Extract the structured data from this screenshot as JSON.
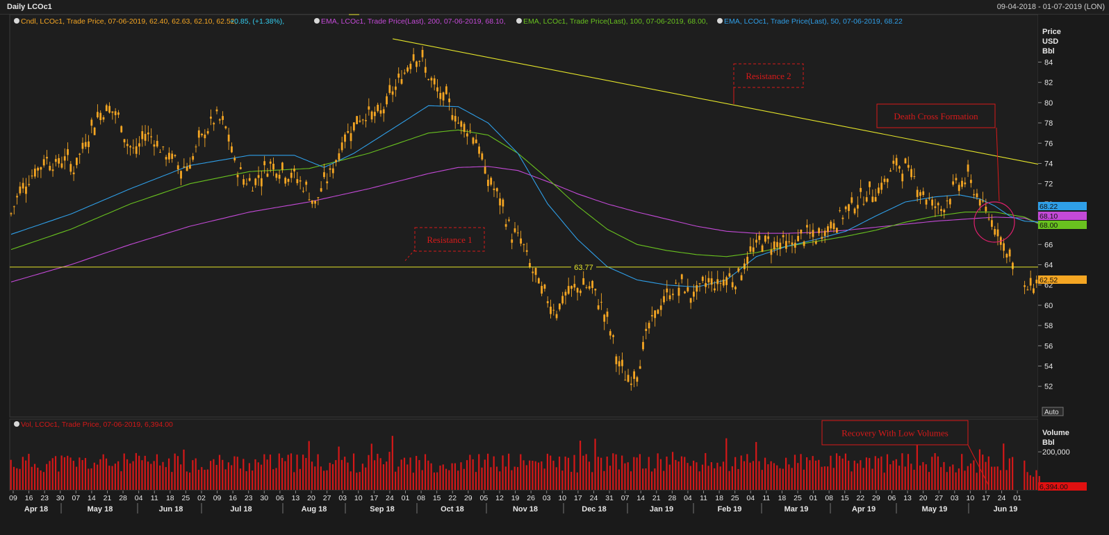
{
  "window": {
    "title": "Daily LCOc1",
    "date_range": "09-04-2018 - 01-07-2019 (LON)"
  },
  "legend_price": {
    "cndl": "Cndl, LCOc1, Trade Price, 07-06-2019, 62.40, 62.63, 62.10, 62.52,",
    "cndl_change": "+0.85, (+1.38%),",
    "ema200": "EMA, LCOc1, Trade Price(Last), 200, 07-06-2019, 68.10,",
    "ema100": "EMA, LCOc1, Trade Price(Last), 100, 07-06-2019, 68.00,",
    "ema50": "EMA, LCOc1, Trade Price(Last), 50, 07-06-2019, 68.22"
  },
  "legend_volume": "Vol, LCOc1, Trade Price, 07-06-2019, 6,394.00",
  "axis_price_label": [
    "Price",
    "USD",
    "Bbl"
  ],
  "axis_volume_label": [
    "Volume",
    "Bbl"
  ],
  "auto_button": "Auto",
  "annotations": {
    "resistance1": "Resistance 1",
    "resistance2": "Resistance 2",
    "death_cross": "Death Cross Formation",
    "recovery": "Recovery With Low Volumes",
    "level_label": "63.77"
  },
  "colors": {
    "background": "#1a1a1a",
    "candle": "#f5a623",
    "ema50": "#2f9fe8",
    "ema100": "#69c21f",
    "ema200": "#c44ad8",
    "trendline": "#e6e62a",
    "volume": "#d41818",
    "annotation": "#d81a1a",
    "circle": "#e0206e"
  },
  "chart_data": [
    {
      "type": "candlestick",
      "title": "Daily LCOc1",
      "ylabel": "Price USD Bbl",
      "ylim": [
        49.5,
        86
      ],
      "yticks": [
        52,
        54,
        56,
        58,
        60,
        62,
        64,
        66,
        68,
        70,
        72,
        74,
        76,
        78,
        80,
        82,
        84
      ],
      "x_tick_labels": [
        "09",
        "16",
        "23",
        "30",
        "07",
        "14",
        "21",
        "28",
        "04",
        "11",
        "18",
        "25",
        "02",
        "09",
        "16",
        "23",
        "30",
        "06",
        "13",
        "20",
        "27",
        "03",
        "10",
        "17",
        "24",
        "01",
        "08",
        "15",
        "22",
        "29",
        "05",
        "12",
        "19",
        "26",
        "03",
        "10",
        "17",
        "24",
        "31",
        "07",
        "14",
        "21",
        "28",
        "04",
        "11",
        "18",
        "25",
        "04",
        "11",
        "18",
        "25",
        "01",
        "08",
        "15",
        "22",
        "29",
        "06",
        "13",
        "20",
        "27",
        "03",
        "10",
        "17",
        "24",
        "01"
      ],
      "month_labels": [
        "Apr 18",
        "May 18",
        "Jun 18",
        "Jul 18",
        "Aug 18",
        "Sep 18",
        "Oct 18",
        "Nov 18",
        "Dec 18",
        "Jan 19",
        "Feb 19",
        "Mar 19",
        "Apr 19",
        "May 19",
        "Jun 19"
      ],
      "close_path": [
        [
          0,
          69.0
        ],
        [
          3,
          71.5
        ],
        [
          6,
          72.5
        ],
        [
          9,
          73.5
        ],
        [
          12,
          74.5
        ],
        [
          15,
          73.8
        ],
        [
          18,
          74.6
        ],
        [
          21,
          73.5
        ],
        [
          24,
          75.5
        ],
        [
          27,
          77.5
        ],
        [
          30,
          79.0
        ],
        [
          33,
          79.5
        ],
        [
          36,
          78.5
        ],
        [
          39,
          76.0
        ],
        [
          42,
          75.0
        ],
        [
          45,
          77.0
        ],
        [
          48,
          76.5
        ],
        [
          51,
          75.0
        ],
        [
          54,
          74.5
        ],
        [
          57,
          73.5
        ],
        [
          60,
          74.0
        ],
        [
          63,
          76.0
        ],
        [
          66,
          77.5
        ],
        [
          69,
          78.5
        ],
        [
          72,
          77.5
        ],
        [
          75,
          74.0
        ],
        [
          78,
          72.5
        ],
        [
          81,
          72.0
        ],
        [
          84,
          73.0
        ],
        [
          87,
          74.0
        ],
        [
          90,
          73.5
        ],
        [
          93,
          73.0
        ],
        [
          96,
          72.5
        ],
        [
          99,
          71.5
        ],
        [
          102,
          70.0
        ],
        [
          105,
          72.0
        ],
        [
          108,
          73.5
        ],
        [
          111,
          76.0
        ],
        [
          114,
          77.5
        ],
        [
          117,
          78.5
        ],
        [
          120,
          79.0
        ],
        [
          123,
          78.5
        ],
        [
          126,
          80.0
        ],
        [
          129,
          81.5
        ],
        [
          132,
          83.0
        ],
        [
          135,
          85.0
        ],
        [
          138,
          84.0
        ],
        [
          141,
          82.0
        ],
        [
          144,
          80.5
        ],
        [
          147,
          80.0
        ],
        [
          150,
          78.0
        ],
        [
          153,
          77.5
        ],
        [
          156,
          76.5
        ],
        [
          159,
          73.0
        ],
        [
          162,
          71.5
        ],
        [
          165,
          69.5
        ],
        [
          168,
          67.0
        ],
        [
          171,
          66.5
        ],
        [
          174,
          64.0
        ],
        [
          177,
          62.0
        ],
        [
          180,
          60.5
        ],
        [
          183,
          59.5
        ],
        [
          186,
          61.0
        ],
        [
          189,
          61.5
        ],
        [
          192,
          62.0
        ],
        [
          195,
          61.5
        ],
        [
          198,
          60.0
        ],
        [
          201,
          57.5
        ],
        [
          204,
          54.0
        ],
        [
          207,
          52.5
        ],
        [
          210,
          53.5
        ],
        [
          213,
          57.0
        ],
        [
          216,
          59.0
        ],
        [
          219,
          60.5
        ],
        [
          222,
          61.5
        ],
        [
          225,
          62.0
        ],
        [
          228,
          61.0
        ],
        [
          231,
          61.5
        ],
        [
          234,
          62.5
        ],
        [
          237,
          62.0
        ],
        [
          240,
          62.8
        ],
        [
          243,
          62.5
        ],
        [
          246,
          64.0
        ],
        [
          249,
          65.5
        ],
        [
          252,
          66.5
        ],
        [
          255,
          66.0
        ],
        [
          258,
          66.2
        ],
        [
          261,
          65.8
        ],
        [
          264,
          66.5
        ],
        [
          267,
          67.0
        ],
        [
          270,
          66.5
        ],
        [
          273,
          67.5
        ],
        [
          276,
          68.0
        ],
        [
          279,
          69.0
        ],
        [
          282,
          70.0
        ],
        [
          285,
          70.5
        ],
        [
          288,
          71.0
        ],
        [
          291,
          71.5
        ],
        [
          294,
          72.5
        ],
        [
          297,
          74.0
        ],
        [
          300,
          73.5
        ],
        [
          303,
          72.5
        ],
        [
          306,
          71.0
        ],
        [
          309,
          70.0
        ],
        [
          312,
          69.5
        ],
        [
          315,
          71.0
        ],
        [
          318,
          72.0
        ],
        [
          321,
          72.5
        ],
        [
          324,
          71.0
        ],
        [
          327,
          69.0
        ],
        [
          330,
          68.0
        ],
        [
          333,
          66.0
        ],
        [
          336,
          64.0
        ],
        [
          339,
          61.0
        ],
        [
          342,
          62.0
        ],
        [
          345,
          62.5
        ]
      ],
      "ema50_path": [
        [
          0,
          67.0
        ],
        [
          20,
          69.0
        ],
        [
          40,
          71.5
        ],
        [
          60,
          73.8
        ],
        [
          80,
          74.8
        ],
        [
          95,
          74.8
        ],
        [
          105,
          73.6
        ],
        [
          115,
          75.0
        ],
        [
          130,
          77.8
        ],
        [
          140,
          79.7
        ],
        [
          150,
          79.6
        ],
        [
          160,
          78.0
        ],
        [
          170,
          75.0
        ],
        [
          180,
          70.0
        ],
        [
          190,
          66.5
        ],
        [
          200,
          63.8
        ],
        [
          210,
          62.5
        ],
        [
          220,
          62.0
        ],
        [
          230,
          61.8
        ],
        [
          240,
          62.5
        ],
        [
          250,
          64.8
        ],
        [
          260,
          65.8
        ],
        [
          270,
          66.5
        ],
        [
          280,
          67.3
        ],
        [
          290,
          68.8
        ],
        [
          300,
          70.2
        ],
        [
          310,
          70.7
        ],
        [
          318,
          70.9
        ],
        [
          325,
          70.5
        ],
        [
          330,
          69.8
        ],
        [
          335,
          68.8
        ],
        [
          340,
          68.3
        ],
        [
          345,
          68.22
        ]
      ],
      "ema100_path": [
        [
          0,
          65.5
        ],
        [
          20,
          67.5
        ],
        [
          40,
          70.0
        ],
        [
          60,
          72.0
        ],
        [
          80,
          73.2
        ],
        [
          100,
          73.5
        ],
        [
          120,
          75.0
        ],
        [
          140,
          77.0
        ],
        [
          150,
          77.3
        ],
        [
          160,
          76.8
        ],
        [
          170,
          75.0
        ],
        [
          180,
          72.5
        ],
        [
          190,
          69.8
        ],
        [
          200,
          67.5
        ],
        [
          210,
          66.0
        ],
        [
          220,
          65.4
        ],
        [
          230,
          65.0
        ],
        [
          240,
          64.8
        ],
        [
          250,
          65.2
        ],
        [
          260,
          65.8
        ],
        [
          270,
          66.3
        ],
        [
          280,
          66.8
        ],
        [
          290,
          67.4
        ],
        [
          300,
          68.2
        ],
        [
          310,
          68.8
        ],
        [
          320,
          69.2
        ],
        [
          330,
          69.2
        ],
        [
          340,
          68.7
        ],
        [
          345,
          68.0
        ]
      ],
      "ema200_path": [
        [
          0,
          62.3
        ],
        [
          20,
          64.0
        ],
        [
          40,
          66.0
        ],
        [
          60,
          67.8
        ],
        [
          80,
          69.2
        ],
        [
          100,
          70.2
        ],
        [
          120,
          71.5
        ],
        [
          140,
          73.0
        ],
        [
          150,
          73.6
        ],
        [
          160,
          73.7
        ],
        [
          170,
          73.3
        ],
        [
          180,
          72.2
        ],
        [
          190,
          71.0
        ],
        [
          200,
          70.0
        ],
        [
          210,
          69.2
        ],
        [
          220,
          68.5
        ],
        [
          230,
          67.8
        ],
        [
          240,
          67.3
        ],
        [
          250,
          67.1
        ],
        [
          260,
          67.1
        ],
        [
          270,
          67.2
        ],
        [
          280,
          67.4
        ],
        [
          290,
          67.7
        ],
        [
          300,
          68.0
        ],
        [
          310,
          68.3
        ],
        [
          320,
          68.5
        ],
        [
          330,
          68.7
        ],
        [
          340,
          68.6
        ],
        [
          345,
          68.1
        ]
      ],
      "trendline": {
        "from": [
          128,
          86.3
        ],
        "to": [
          345,
          73.9
        ]
      },
      "horizontal_level": 63.77,
      "last_values": {
        "ema50": 68.22,
        "ema200": 68.1,
        "ema100": 68.0,
        "close": 62.52
      }
    },
    {
      "type": "bar",
      "title": "Vol, LCOc1",
      "ylabel": "Volume Bbl",
      "ylim": [
        0,
        310000
      ],
      "yticks": [
        200000
      ],
      "last_value": 6394.0,
      "typical_range": [
        90000,
        280000
      ]
    }
  ]
}
